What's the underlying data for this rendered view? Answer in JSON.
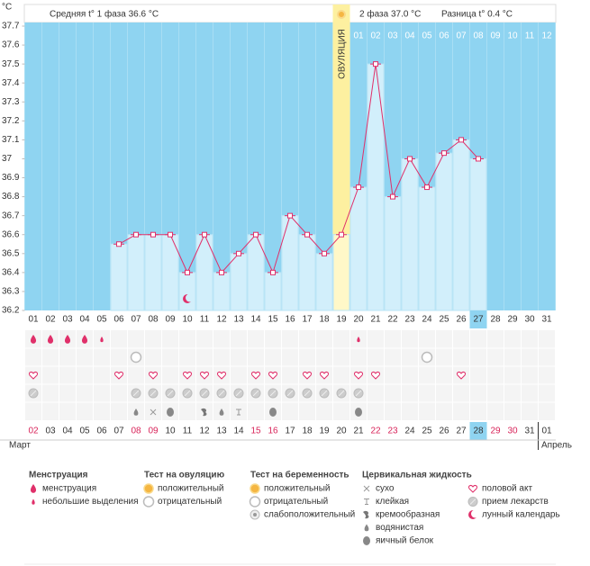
{
  "chart_data": {
    "type": "line",
    "y_unit": "°C",
    "phase1_text": "Средняя t° 1 фаза 36.6 °C",
    "phase2_text": "2 фаза 37.0 °C",
    "diff_text": "Разница t° 0.4 °C",
    "ovulation_label": "ОВУЛЯЦИЯ",
    "categories": [
      "01",
      "02",
      "03",
      "04",
      "05",
      "06",
      "07",
      "08",
      "09",
      "10",
      "11",
      "12",
      "13",
      "14",
      "15",
      "16",
      "17",
      "18",
      "19",
      "20",
      "21",
      "22",
      "23",
      "24",
      "25",
      "26",
      "27",
      "28",
      "29",
      "30",
      "31"
    ],
    "phase2_days": [
      "01",
      "02",
      "03",
      "04",
      "05",
      "06",
      "07",
      "08",
      "09",
      "10",
      "11",
      "12"
    ],
    "series": [
      {
        "color": "#e0306a",
        "bar_color": "#d2effb",
        "values": [
          null,
          null,
          null,
          null,
          null,
          36.55,
          36.6,
          36.6,
          36.6,
          36.4,
          36.6,
          36.4,
          36.5,
          36.6,
          36.4,
          36.7,
          36.6,
          36.5,
          36.6,
          36.85,
          37.5,
          36.8,
          37.0,
          36.85,
          37.03,
          37.1,
          37.0,
          null,
          null,
          null,
          null
        ]
      }
    ],
    "ylim": [
      36.2,
      37.7
    ],
    "yticks": [
      36.2,
      36.3,
      36.4,
      36.5,
      36.6,
      36.7,
      36.8,
      36.9,
      37,
      37.1,
      37.2,
      37.3,
      37.4,
      37.5,
      37.6,
      37.7
    ],
    "plot_color": "#8fd4f1",
    "dates": [
      "02",
      "03",
      "04",
      "05",
      "06",
      "07",
      "08",
      "09",
      "10",
      "11",
      "12",
      "13",
      "14",
      "15",
      "16",
      "17",
      "18",
      "19",
      "20",
      "21",
      "22",
      "23",
      "24",
      "25",
      "26",
      "27",
      "28",
      "29",
      "30",
      "31",
      "01"
    ],
    "months": [
      "Март",
      "Апрель"
    ],
    "legend": [
      {
        "title": "Менструация",
        "items": [
          "менструация",
          "небольшие выделения"
        ]
      },
      {
        "title": "Тест на овуляцию",
        "items": [
          "положительный",
          "отрицательный"
        ]
      },
      {
        "title": "Тест на беременность",
        "items": [
          "положительный",
          "отрицательный",
          "слабоположительный"
        ]
      },
      {
        "title": "Цервикальная жидкость",
        "items": [
          "сухо",
          "клейкая",
          "кремообразная",
          "водянистая",
          "яичный белок"
        ]
      },
      {
        "items": [
          "половой акт",
          "прием лекарств",
          "лунный календарь"
        ]
      }
    ]
  }
}
